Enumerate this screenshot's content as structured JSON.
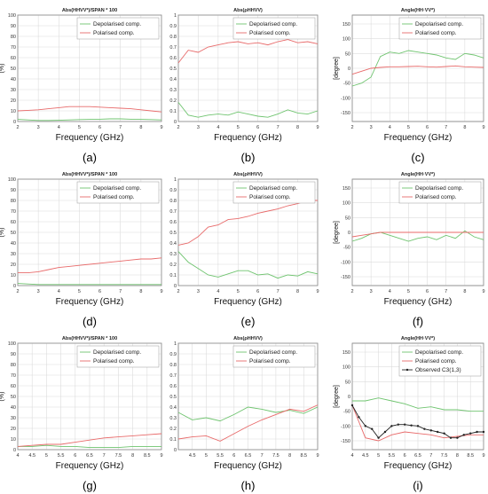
{
  "colors": {
    "depol": "#6fc46f",
    "pol": "#e86a6a",
    "observed": "#222222",
    "grid": "#dcdcdc",
    "axis": "#888888"
  },
  "chart_data": [
    {
      "panel": "(a)",
      "type": "line",
      "title": "Abs(HHVV*)/SPAN * 100",
      "xlabel": "Frequency (GHz)",
      "ylabel": "(%)",
      "xlim": [
        2,
        9
      ],
      "ylim": [
        0,
        100
      ],
      "xticks": [
        "2",
        "3",
        "4",
        "5",
        "6",
        "7",
        "8",
        "9"
      ],
      "yticks": [
        "0",
        "10",
        "20",
        "30",
        "40",
        "50",
        "60",
        "70",
        "80",
        "90",
        "100"
      ],
      "legend": [
        "Depolarised comp.",
        "Polarised comp."
      ],
      "legend_position": "top-right",
      "grid": true,
      "series": [
        {
          "name": "Depolarised comp.",
          "x": [
            2,
            2.5,
            3,
            3.5,
            4,
            4.5,
            5,
            5.5,
            6,
            6.5,
            7,
            7.5,
            8,
            8.5,
            9
          ],
          "values": [
            2,
            1.5,
            1,
            1,
            1.2,
            1.5,
            1.8,
            2,
            2.2,
            2.5,
            2.5,
            2.2,
            2,
            1.8,
            1.5
          ]
        },
        {
          "name": "Polarised comp.",
          "x": [
            2,
            2.5,
            3,
            3.5,
            4,
            4.5,
            5,
            5.5,
            6,
            6.5,
            7,
            7.5,
            8,
            8.5,
            9
          ],
          "values": [
            10,
            10.5,
            11,
            12,
            13,
            14,
            14,
            14,
            13.5,
            13,
            12.5,
            12,
            11,
            10,
            9
          ]
        }
      ]
    },
    {
      "panel": "(b)",
      "type": "line",
      "title": "Abs(ρHHVV)",
      "xlabel": "Frequency (GHz)",
      "ylabel": "",
      "xlim": [
        2,
        9
      ],
      "ylim": [
        0,
        1
      ],
      "xticks": [
        "2",
        "3",
        "4",
        "5",
        "6",
        "7",
        "8",
        "9"
      ],
      "yticks": [
        "0",
        "0.1",
        "0.2",
        "0.3",
        "0.4",
        "0.5",
        "0.6",
        "0.7",
        "0.8",
        "0.9",
        "1"
      ],
      "legend": [
        "Depolarised comp.",
        "Polarised comp."
      ],
      "legend_position": "top-right",
      "grid": true,
      "series": [
        {
          "name": "Depolarised comp.",
          "x": [
            2,
            2.5,
            3,
            3.5,
            4,
            4.5,
            5,
            5.5,
            6,
            6.5,
            7,
            7.5,
            8,
            8.5,
            9
          ],
          "values": [
            0.18,
            0.06,
            0.04,
            0.06,
            0.07,
            0.06,
            0.09,
            0.07,
            0.05,
            0.04,
            0.07,
            0.11,
            0.08,
            0.07,
            0.1
          ]
        },
        {
          "name": "Polarised comp.",
          "x": [
            2,
            2.5,
            3,
            3.5,
            4,
            4.5,
            5,
            5.5,
            6,
            6.5,
            7,
            7.5,
            8,
            8.5,
            9
          ],
          "values": [
            0.55,
            0.67,
            0.65,
            0.7,
            0.72,
            0.74,
            0.75,
            0.73,
            0.74,
            0.72,
            0.75,
            0.77,
            0.74,
            0.75,
            0.73
          ]
        }
      ]
    },
    {
      "panel": "(c)",
      "type": "line",
      "title": "Angle(HH·VV*)",
      "xlabel": "Frequency (GHz)",
      "ylabel": "[degree]",
      "xlim": [
        2,
        9
      ],
      "ylim": [
        -180,
        180
      ],
      "xticks": [
        "2",
        "3",
        "4",
        "5",
        "6",
        "7",
        "8",
        "9"
      ],
      "yticks": [
        "-150",
        "-100",
        "-50",
        "0",
        "50",
        "100",
        "150"
      ],
      "legend": [
        "Depolarised comp.",
        "Polarised comp."
      ],
      "legend_position": "top-right",
      "grid": true,
      "series": [
        {
          "name": "Depolarised comp.",
          "x": [
            2,
            2.5,
            3,
            3.5,
            4,
            4.5,
            5,
            5.5,
            6,
            6.5,
            7,
            7.5,
            8,
            8.5,
            9
          ],
          "values": [
            -60,
            -50,
            -30,
            40,
            55,
            50,
            60,
            55,
            50,
            45,
            35,
            30,
            50,
            45,
            35
          ]
        },
        {
          "name": "Polarised comp.",
          "x": [
            2,
            2.5,
            3,
            3.5,
            4,
            4.5,
            5,
            5.5,
            6,
            6.5,
            7,
            7.5,
            8,
            8.5,
            9
          ],
          "values": [
            -20,
            -10,
            0,
            3,
            5,
            5,
            6,
            7,
            5,
            4,
            6,
            8,
            5,
            4,
            3
          ]
        }
      ]
    },
    {
      "panel": "(d)",
      "type": "line",
      "title": "Abs(HHVV*)/SPAN * 100",
      "xlabel": "Frequency (GHz)",
      "ylabel": "(%)",
      "xlim": [
        2,
        9
      ],
      "ylim": [
        0,
        100
      ],
      "xticks": [
        "2",
        "3",
        "4",
        "5",
        "6",
        "7",
        "8",
        "9"
      ],
      "yticks": [
        "0",
        "10",
        "20",
        "30",
        "40",
        "50",
        "60",
        "70",
        "80",
        "90",
        "100"
      ],
      "legend": [
        "Depolarised comp.",
        "Polarised comp."
      ],
      "legend_position": "top-right",
      "grid": true,
      "series": [
        {
          "name": "Depolarised comp.",
          "x": [
            2,
            2.5,
            3,
            3.5,
            4,
            4.5,
            5,
            5.5,
            6,
            6.5,
            7,
            7.5,
            8,
            8.5,
            9
          ],
          "values": [
            2,
            1.5,
            1,
            1,
            1,
            1,
            1,
            1,
            1,
            1,
            1,
            1,
            1,
            1,
            1
          ]
        },
        {
          "name": "Polarised comp.",
          "x": [
            2,
            2.5,
            3,
            3.5,
            4,
            4.5,
            5,
            5.5,
            6,
            6.5,
            7,
            7.5,
            8,
            8.5,
            9
          ],
          "values": [
            12,
            12,
            13,
            15,
            17,
            18,
            19,
            20,
            21,
            22,
            23,
            24,
            25,
            25,
            26
          ]
        }
      ]
    },
    {
      "panel": "(e)",
      "type": "line",
      "title": "Abs(ρHHVV)",
      "xlabel": "Frequency (GHz)",
      "ylabel": "",
      "xlim": [
        2,
        9
      ],
      "ylim": [
        0,
        1
      ],
      "xticks": [
        "2",
        "3",
        "4",
        "5",
        "6",
        "7",
        "8",
        "9"
      ],
      "yticks": [
        "0",
        "0.1",
        "0.2",
        "0.3",
        "0.4",
        "0.5",
        "0.6",
        "0.7",
        "0.8",
        "0.9",
        "1"
      ],
      "legend": [
        "Depolarised comp.",
        "Polarised comp."
      ],
      "legend_position": "top-right",
      "grid": true,
      "series": [
        {
          "name": "Depolarised comp.",
          "x": [
            2,
            2.5,
            3,
            3.5,
            4,
            4.5,
            5,
            5.5,
            6,
            6.5,
            7,
            7.5,
            8,
            8.5,
            9
          ],
          "values": [
            0.32,
            0.22,
            0.16,
            0.1,
            0.08,
            0.11,
            0.14,
            0.14,
            0.1,
            0.11,
            0.07,
            0.1,
            0.09,
            0.13,
            0.11
          ]
        },
        {
          "name": "Polarised comp.",
          "x": [
            2,
            2.5,
            3,
            3.5,
            4,
            4.5,
            5,
            5.5,
            6,
            6.5,
            7,
            7.5,
            8,
            8.5,
            9
          ],
          "values": [
            0.38,
            0.4,
            0.46,
            0.55,
            0.57,
            0.62,
            0.63,
            0.65,
            0.68,
            0.7,
            0.72,
            0.75,
            0.77,
            0.8,
            0.8
          ]
        }
      ]
    },
    {
      "panel": "(f)",
      "type": "line",
      "title": "Angle(HH·VV*)",
      "xlabel": "Frequency (GHz)",
      "ylabel": "[degree]",
      "xlim": [
        2,
        9
      ],
      "ylim": [
        -180,
        180
      ],
      "xticks": [
        "2",
        "3",
        "4",
        "5",
        "6",
        "7",
        "8",
        "9"
      ],
      "yticks": [
        "-150",
        "-100",
        "-50",
        "0",
        "50",
        "100",
        "150"
      ],
      "legend": [
        "Depolarised comp.",
        "Polarised comp."
      ],
      "legend_position": "top-right",
      "grid": true,
      "series": [
        {
          "name": "Depolarised comp.",
          "x": [
            2,
            2.5,
            3,
            3.5,
            4,
            4.5,
            5,
            5.5,
            6,
            6.5,
            7,
            7.5,
            8,
            8.5,
            9
          ],
          "values": [
            -30,
            -20,
            -5,
            0,
            -10,
            -20,
            -30,
            -20,
            -15,
            -25,
            -10,
            -20,
            5,
            -15,
            -25
          ]
        },
        {
          "name": "Polarised comp.",
          "x": [
            2,
            2.5,
            3,
            3.5,
            4,
            4.5,
            5,
            5.5,
            6,
            6.5,
            7,
            7.5,
            8,
            8.5,
            9
          ],
          "values": [
            -15,
            -10,
            -5,
            0,
            0,
            0,
            0,
            0,
            0,
            0,
            0,
            0,
            0,
            0,
            0
          ]
        }
      ]
    },
    {
      "panel": "(g)",
      "type": "line",
      "title": "Abs(HHVV*)/SPAN * 100",
      "xlabel": "Frequency (GHz)",
      "ylabel": "(%)",
      "xlim": [
        4,
        9
      ],
      "ylim": [
        0,
        100
      ],
      "xticks": [
        "4",
        "4.5",
        "5",
        "5.5",
        "6",
        "6.5",
        "7",
        "7.5",
        "8",
        "8.5",
        "9"
      ],
      "yticks": [
        "0",
        "10",
        "20",
        "30",
        "40",
        "50",
        "60",
        "70",
        "80",
        "90",
        "100"
      ],
      "legend": [
        "Depolarised comp.",
        "Polarised comp."
      ],
      "legend_position": "top-right",
      "grid": true,
      "series": [
        {
          "name": "Depolarised comp.",
          "x": [
            4,
            4.5,
            5,
            5.5,
            6,
            6.5,
            7,
            7.5,
            8,
            8.5,
            9
          ],
          "values": [
            3,
            3,
            4,
            3,
            3,
            2,
            2,
            2,
            3,
            3,
            3
          ]
        },
        {
          "name": "Polarised comp.",
          "x": [
            4,
            4.5,
            5,
            5.5,
            6,
            6.5,
            7,
            7.5,
            8,
            8.5,
            9
          ],
          "values": [
            3,
            4,
            5,
            5,
            7,
            9,
            11,
            12,
            13,
            14,
            15
          ]
        }
      ]
    },
    {
      "panel": "(h)",
      "type": "line",
      "title": "Abs(ρHHVV)",
      "xlabel": "Frequency (GHz)",
      "ylabel": "",
      "xlim": [
        4,
        9
      ],
      "ylim": [
        0,
        1
      ],
      "xticks": [
        "4.5",
        "5",
        "5.5",
        "6",
        "6.5",
        "7",
        "7.5",
        "8",
        "8.5",
        "9"
      ],
      "yticks": [
        "0",
        "0.1",
        "0.2",
        "0.3",
        "0.4",
        "0.5",
        "0.6",
        "0.7",
        "0.8",
        "0.9",
        "1"
      ],
      "legend": [
        "Depolarised comp.",
        "Polarised comp."
      ],
      "legend_position": "top-right",
      "grid": true,
      "series": [
        {
          "name": "Depolarised comp.",
          "x": [
            4,
            4.5,
            5,
            5.5,
            6,
            6.5,
            7,
            7.5,
            8,
            8.5,
            9
          ],
          "values": [
            0.35,
            0.28,
            0.3,
            0.27,
            0.33,
            0.4,
            0.38,
            0.35,
            0.37,
            0.34,
            0.4
          ]
        },
        {
          "name": "Polarised comp.",
          "x": [
            4,
            4.5,
            5,
            5.5,
            6,
            6.5,
            7,
            7.5,
            8,
            8.5,
            9
          ],
          "values": [
            0.1,
            0.12,
            0.13,
            0.08,
            0.15,
            0.22,
            0.28,
            0.33,
            0.38,
            0.36,
            0.42
          ]
        }
      ]
    },
    {
      "panel": "(i)",
      "type": "line",
      "title": "Angle(HH·VV*)",
      "xlabel": "Frequency (GHz)",
      "ylabel": "[degree]",
      "xlim": [
        4,
        9
      ],
      "ylim": [
        -180,
        180
      ],
      "xticks": [
        "4",
        "4.5",
        "5",
        "5.5",
        "6",
        "6.5",
        "7",
        "7.5",
        "8",
        "8.5",
        "9"
      ],
      "yticks": [
        "-150",
        "-100",
        "-50",
        "0",
        "50",
        "100",
        "150"
      ],
      "legend": [
        "Depolarised comp.",
        "Polarised comp.",
        "Observed C3(1,3)"
      ],
      "legend_position": "top-right",
      "grid": true,
      "series": [
        {
          "name": "Depolarised comp.",
          "x": [
            4,
            4.5,
            5,
            5.5,
            6,
            6.5,
            7,
            7.5,
            8,
            8.5,
            9
          ],
          "values": [
            -15,
            -15,
            -5,
            -15,
            -25,
            -40,
            -35,
            -45,
            -45,
            -50,
            -50
          ]
        },
        {
          "name": "Polarised comp.",
          "x": [
            4,
            4.5,
            5,
            5.5,
            6,
            6.5,
            7,
            7.5,
            8,
            8.5,
            9
          ],
          "values": [
            -30,
            -140,
            -150,
            -130,
            -120,
            -125,
            -130,
            -140,
            -135,
            -130,
            -130
          ]
        },
        {
          "name": "Observed C3(1,3)",
          "x": [
            4,
            4.25,
            4.5,
            4.75,
            5,
            5.25,
            5.5,
            5.75,
            6,
            6.25,
            6.5,
            6.75,
            7,
            7.25,
            7.5,
            7.75,
            8,
            8.25,
            8.5,
            8.75,
            9
          ],
          "values": [
            -30,
            -70,
            -100,
            -110,
            -140,
            -120,
            -100,
            -95,
            -95,
            -98,
            -100,
            -110,
            -115,
            -120,
            -125,
            -140,
            -140,
            -130,
            -125,
            -120,
            -120
          ],
          "markers": true
        }
      ]
    }
  ]
}
